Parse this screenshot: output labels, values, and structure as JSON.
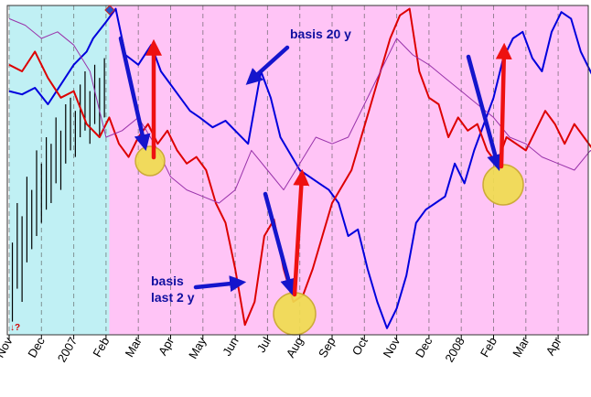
{
  "chart_data": {
    "type": "line",
    "title": "",
    "xlabel": "",
    "ylabel": "",
    "x_ticks": [
      "Nov",
      "Dec",
      "2007",
      "Feb",
      "Mar",
      "Apr",
      "May",
      "Jun",
      "Jul",
      "Aug",
      "Sep",
      "Oct",
      "Nov",
      "Dec",
      "2008",
      "Feb",
      "Mar",
      "Apr"
    ],
    "x_range": [
      0,
      20
    ],
    "y_range": [
      0,
      100
    ],
    "grid": true,
    "legend": "none",
    "regions": [
      {
        "name": "history-region",
        "x_start": 0,
        "x_end": 3.1,
        "color": "#c0f0f4"
      },
      {
        "name": "projection-region",
        "x_start": 3.1,
        "x_end": 20,
        "color": "#ffc4f6"
      }
    ],
    "price_bars": {
      "color": "#000000",
      "bars": [
        {
          "x": 0.1,
          "high": 28,
          "low": 4
        },
        {
          "x": 0.25,
          "high": 40,
          "low": 14
        },
        {
          "x": 0.4,
          "high": 36,
          "low": 10
        },
        {
          "x": 0.55,
          "high": 48,
          "low": 22
        },
        {
          "x": 0.7,
          "high": 44,
          "low": 26
        },
        {
          "x": 0.85,
          "high": 56,
          "low": 30
        },
        {
          "x": 1.0,
          "high": 52,
          "low": 34
        },
        {
          "x": 1.15,
          "high": 60,
          "low": 38
        },
        {
          "x": 1.3,
          "high": 58,
          "low": 40
        },
        {
          "x": 1.45,
          "high": 66,
          "low": 46
        },
        {
          "x": 1.6,
          "high": 62,
          "low": 44
        },
        {
          "x": 1.75,
          "high": 70,
          "low": 52
        },
        {
          "x": 1.9,
          "high": 72,
          "low": 56
        },
        {
          "x": 2.05,
          "high": 68,
          "low": 54
        },
        {
          "x": 2.2,
          "high": 76,
          "low": 60
        },
        {
          "x": 2.35,
          "high": 80,
          "low": 62
        },
        {
          "x": 2.5,
          "high": 74,
          "low": 58
        },
        {
          "x": 2.65,
          "high": 82,
          "low": 64
        },
        {
          "x": 2.8,
          "high": 78,
          "low": 60
        },
        {
          "x": 2.95,
          "high": 84,
          "low": 66
        }
      ]
    },
    "series": [
      {
        "color": "#0000dd",
        "width": 2,
        "x": [
          0,
          0.4,
          0.8,
          1.2,
          1.6,
          2.0,
          2.4,
          2.6,
          3.0,
          3.3,
          3.6,
          4.0,
          4.4,
          4.7,
          5.0,
          5.3,
          5.6,
          5.9,
          6.3,
          6.7,
          7.0,
          7.4,
          7.8,
          8.1,
          8.4,
          8.7,
          9.0,
          9.3,
          9.6,
          9.9,
          10.2,
          10.5,
          10.8,
          11.1,
          11.4,
          11.7,
          12.0,
          12.3,
          12.6,
          12.9,
          13.2,
          13.5,
          13.8,
          14.1,
          14.4,
          14.7,
          15.0,
          15.3,
          15.6,
          15.9,
          16.2,
          16.5,
          16.8,
          17.1,
          17.4,
          17.7,
          18.0,
          18.3,
          18.6,
          18.9,
          19.2,
          19.5,
          19.8,
          20.0
        ],
        "y": [
          74,
          73,
          75,
          70,
          76,
          82,
          86,
          90,
          95,
          99,
          85,
          82,
          88,
          80,
          76,
          72,
          68,
          66,
          63,
          65,
          62,
          58,
          80,
          72,
          60,
          55,
          50,
          48,
          46,
          44,
          40,
          30,
          32,
          20,
          10,
          2,
          8,
          18,
          34,
          38,
          40,
          42,
          52,
          46,
          56,
          64,
          72,
          84,
          90,
          92,
          84,
          80,
          92,
          98,
          96,
          86,
          80,
          74,
          60,
          66,
          72,
          64,
          72,
          75
        ]
      },
      {
        "color": "#dd0000",
        "width": 2,
        "x": [
          0,
          0.4,
          0.8,
          1.2,
          1.6,
          2.0,
          2.4,
          2.8,
          3.1,
          3.4,
          3.7,
          4.0,
          4.3,
          4.6,
          4.9,
          5.2,
          5.5,
          5.8,
          6.1,
          6.4,
          6.7,
          7.0,
          7.3,
          7.6,
          7.9,
          8.2,
          8.5,
          8.8,
          9.1,
          9.4,
          9.7,
          10.0,
          10.3,
          10.6,
          10.9,
          11.2,
          11.5,
          11.8,
          12.1,
          12.4,
          12.7,
          13.0,
          13.3,
          13.6,
          13.9,
          14.2,
          14.5,
          14.8,
          15.1,
          15.4,
          15.7,
          16.0,
          16.3,
          16.6,
          16.9,
          17.2,
          17.5,
          17.8,
          18.1,
          18.4,
          18.7,
          19.0,
          19.3,
          19.6,
          20.0
        ],
        "y": [
          82,
          80,
          86,
          78,
          72,
          74,
          64,
          60,
          66,
          58,
          54,
          60,
          64,
          58,
          62,
          56,
          52,
          54,
          50,
          40,
          34,
          20,
          3,
          10,
          30,
          35,
          20,
          10,
          12,
          20,
          30,
          40,
          45,
          50,
          60,
          70,
          80,
          90,
          97,
          99,
          80,
          72,
          70,
          60,
          66,
          62,
          64,
          56,
          52,
          60,
          58,
          56,
          62,
          68,
          64,
          58,
          64,
          60,
          56,
          48,
          52,
          46,
          40,
          56,
          70
        ]
      },
      {
        "color": "#9933aa",
        "width": 1,
        "x": [
          0,
          0.5,
          1.0,
          1.5,
          2.0,
          2.5,
          3.0,
          3.5,
          4.0,
          4.5,
          5.0,
          5.5,
          6.0,
          6.5,
          7.0,
          7.5,
          8.0,
          8.5,
          9.0,
          9.5,
          10.0,
          10.5,
          11.0,
          11.5,
          12.0,
          12.5,
          13.0,
          13.5,
          14.0,
          14.5,
          15.0,
          15.5,
          16.0,
          16.5,
          17.0,
          17.5,
          18.0,
          18.5,
          19.0,
          19.5,
          20.0
        ],
        "y": [
          96,
          94,
          90,
          92,
          88,
          80,
          60,
          62,
          66,
          58,
          48,
          44,
          42,
          40,
          44,
          56,
          50,
          44,
          52,
          60,
          58,
          60,
          70,
          80,
          90,
          85,
          82,
          78,
          74,
          70,
          66,
          60,
          58,
          54,
          52,
          50,
          56,
          50,
          40,
          44,
          46
        ]
      }
    ],
    "annotations": [
      {
        "text": "basis 20 y"
      },
      {
        "text": "basis"
      },
      {
        "text": "last 2 y"
      }
    ],
    "corner_text": "↓?",
    "arrow_colors": {
      "down": "#1515cc",
      "up": "#ee1111",
      "pointer": "#1515cc"
    },
    "highlight_color": "#f0dc50"
  }
}
